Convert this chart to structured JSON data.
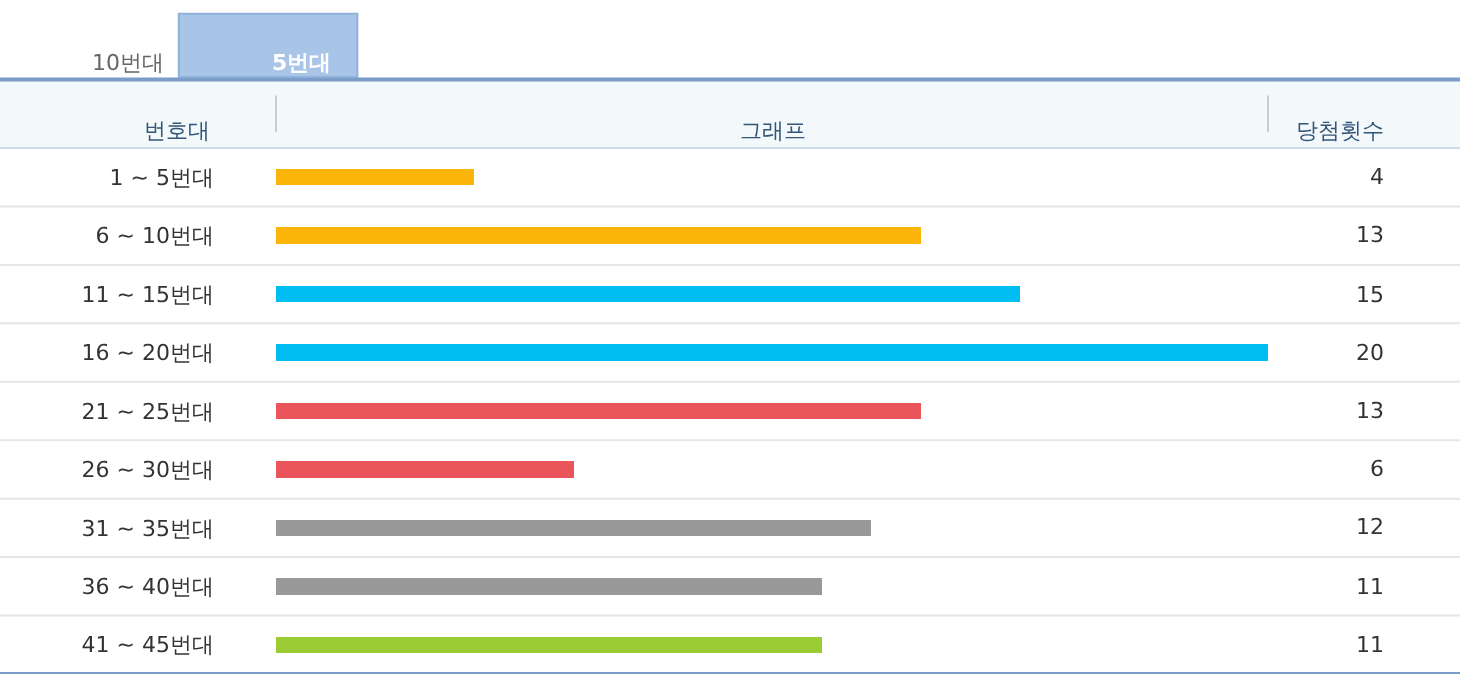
{
  "chart_data": {
    "type": "bar",
    "orientation": "horizontal",
    "ylabel": "번호대",
    "xlabel": "그래프",
    "annotations": [
      "10번대",
      "5번대",
      "당첨횟수"
    ],
    "categories": [
      "1 ~ 5번대",
      "6 ~ 10번대",
      "11 ~ 15번대",
      "16 ~ 20번대",
      "21 ~ 25번대",
      "26 ~ 30번대",
      "31 ~ 35번대",
      "36 ~ 40번대",
      "41 ~ 45번대"
    ],
    "values": [
      4,
      13,
      15,
      20,
      13,
      6,
      12,
      11,
      11
    ],
    "colors": [
      "#fbb40a",
      "#fbb40a",
      "#00bdf2",
      "#00bdf2",
      "#e9555b",
      "#e9555b",
      "#999999",
      "#999999",
      "#9ccc33"
    ],
    "data_labels": true
  }
}
